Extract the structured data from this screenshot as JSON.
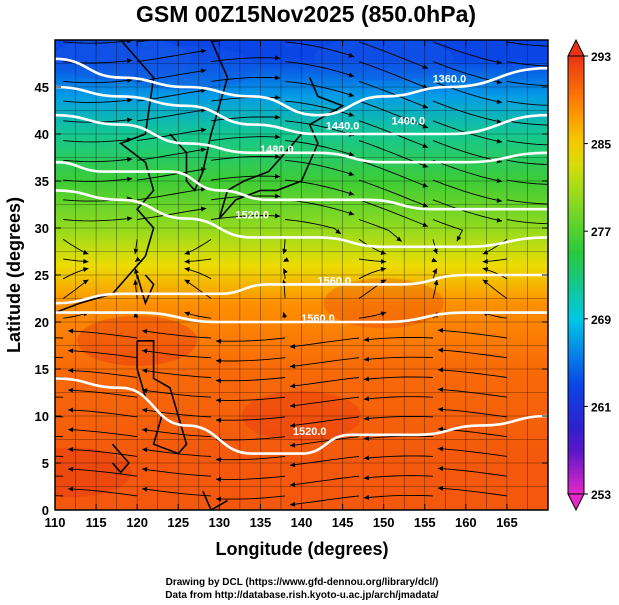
{
  "chart_data": {
    "type": "heatmap",
    "title": "GSM 00Z15Nov2025 (850.0hPa)",
    "xlabel": "Longitude (degrees)",
    "ylabel": "Latitude  (degrees)",
    "xlim": [
      110,
      170
    ],
    "ylim": [
      0,
      50
    ],
    "xticks": [
      "110",
      "115",
      "120",
      "125",
      "130",
      "135",
      "140",
      "145",
      "150",
      "155",
      "160",
      "165"
    ],
    "yticks": [
      "0",
      "5",
      "10",
      "15",
      "20",
      "25",
      "30",
      "35",
      "40",
      "45"
    ],
    "grid": true,
    "colorbar": {
      "min": 253,
      "max": 293,
      "ticks": [
        "253",
        "261",
        "269",
        "277",
        "285",
        "293"
      ]
    },
    "temperature_bands": [
      {
        "lat": 48,
        "value": 263
      },
      {
        "lat": 44,
        "value": 267
      },
      {
        "lat": 40,
        "value": 272
      },
      {
        "lat": 35,
        "value": 276
      },
      {
        "lat": 30,
        "value": 280
      },
      {
        "lat": 26,
        "value": 284
      },
      {
        "lat": 22,
        "value": 288
      },
      {
        "lat": 15,
        "value": 290
      },
      {
        "lat": 5,
        "value": 291
      }
    ],
    "height_contours": [
      {
        "label": "1360.0",
        "points": [
          [
            110,
            48
          ],
          [
            118,
            46
          ],
          [
            126,
            45
          ],
          [
            134,
            44
          ],
          [
            142,
            42
          ],
          [
            150,
            44
          ],
          [
            158,
            45
          ],
          [
            170,
            47
          ]
        ],
        "label_at": [
          158,
          45.5
        ]
      },
      {
        "label": "1400.0",
        "points": [
          [
            110,
            45
          ],
          [
            118,
            44
          ],
          [
            126,
            43
          ],
          [
            134,
            41
          ],
          [
            142,
            40
          ],
          [
            150,
            40
          ],
          [
            158,
            40
          ],
          [
            170,
            42
          ]
        ],
        "label_at": [
          153,
          41
        ]
      },
      {
        "label": "1440.0",
        "points": [
          [
            110,
            42
          ],
          [
            118,
            41
          ],
          [
            126,
            39
          ],
          [
            134,
            38
          ],
          [
            142,
            38
          ],
          [
            150,
            37
          ],
          [
            160,
            37
          ],
          [
            170,
            38
          ]
        ],
        "label_at": [
          145,
          40.5
        ]
      },
      {
        "label": "1480.0",
        "points": [
          [
            110,
            37
          ],
          [
            116,
            36
          ],
          [
            124,
            36
          ],
          [
            130,
            34
          ],
          [
            136,
            33
          ],
          [
            142,
            33
          ],
          [
            148,
            33
          ],
          [
            156,
            32
          ],
          [
            170,
            32
          ]
        ],
        "label_at": [
          137,
          38
        ]
      },
      {
        "label": "1520.0",
        "points": [
          [
            110,
            34
          ],
          [
            118,
            33
          ],
          [
            126,
            31
          ],
          [
            134,
            29
          ],
          [
            142,
            29
          ],
          [
            150,
            28
          ],
          [
            160,
            28
          ],
          [
            170,
            29
          ]
        ],
        "label_at": [
          134,
          31
        ]
      },
      {
        "label": "1560.0",
        "points": [
          [
            110,
            22
          ],
          [
            118,
            23
          ],
          [
            124,
            23
          ],
          [
            130,
            23
          ],
          [
            136,
            24
          ],
          [
            144,
            24
          ],
          [
            152,
            24
          ],
          [
            160,
            25
          ],
          [
            170,
            25
          ]
        ],
        "label_at": [
          144,
          24
        ]
      },
      {
        "label": "1560.0",
        "points": [
          [
            110,
            21
          ],
          [
            120,
            21
          ],
          [
            130,
            20
          ],
          [
            140,
            20
          ],
          [
            150,
            20
          ],
          [
            160,
            21
          ],
          [
            170,
            21
          ]
        ],
        "label_at": [
          142,
          20
        ]
      },
      {
        "label": "1520.0",
        "points": [
          [
            110,
            14
          ],
          [
            118,
            13
          ],
          [
            126,
            9
          ],
          [
            134,
            6
          ],
          [
            140,
            6
          ],
          [
            146,
            8
          ],
          [
            154,
            8
          ],
          [
            162,
            9
          ],
          [
            170,
            10
          ]
        ],
        "label_at": [
          141,
          8
        ]
      }
    ],
    "wind_field": "streamlines, predominantly westerly north of 30N, easterly trades south of 20N"
  },
  "credits": {
    "line1": "Drawing by DCL (https://www.gfd-dennou.org/library/dcl/)",
    "line2": "Data from http://database.rish.kyoto-u.ac.jp/arch/jmadata/"
  }
}
